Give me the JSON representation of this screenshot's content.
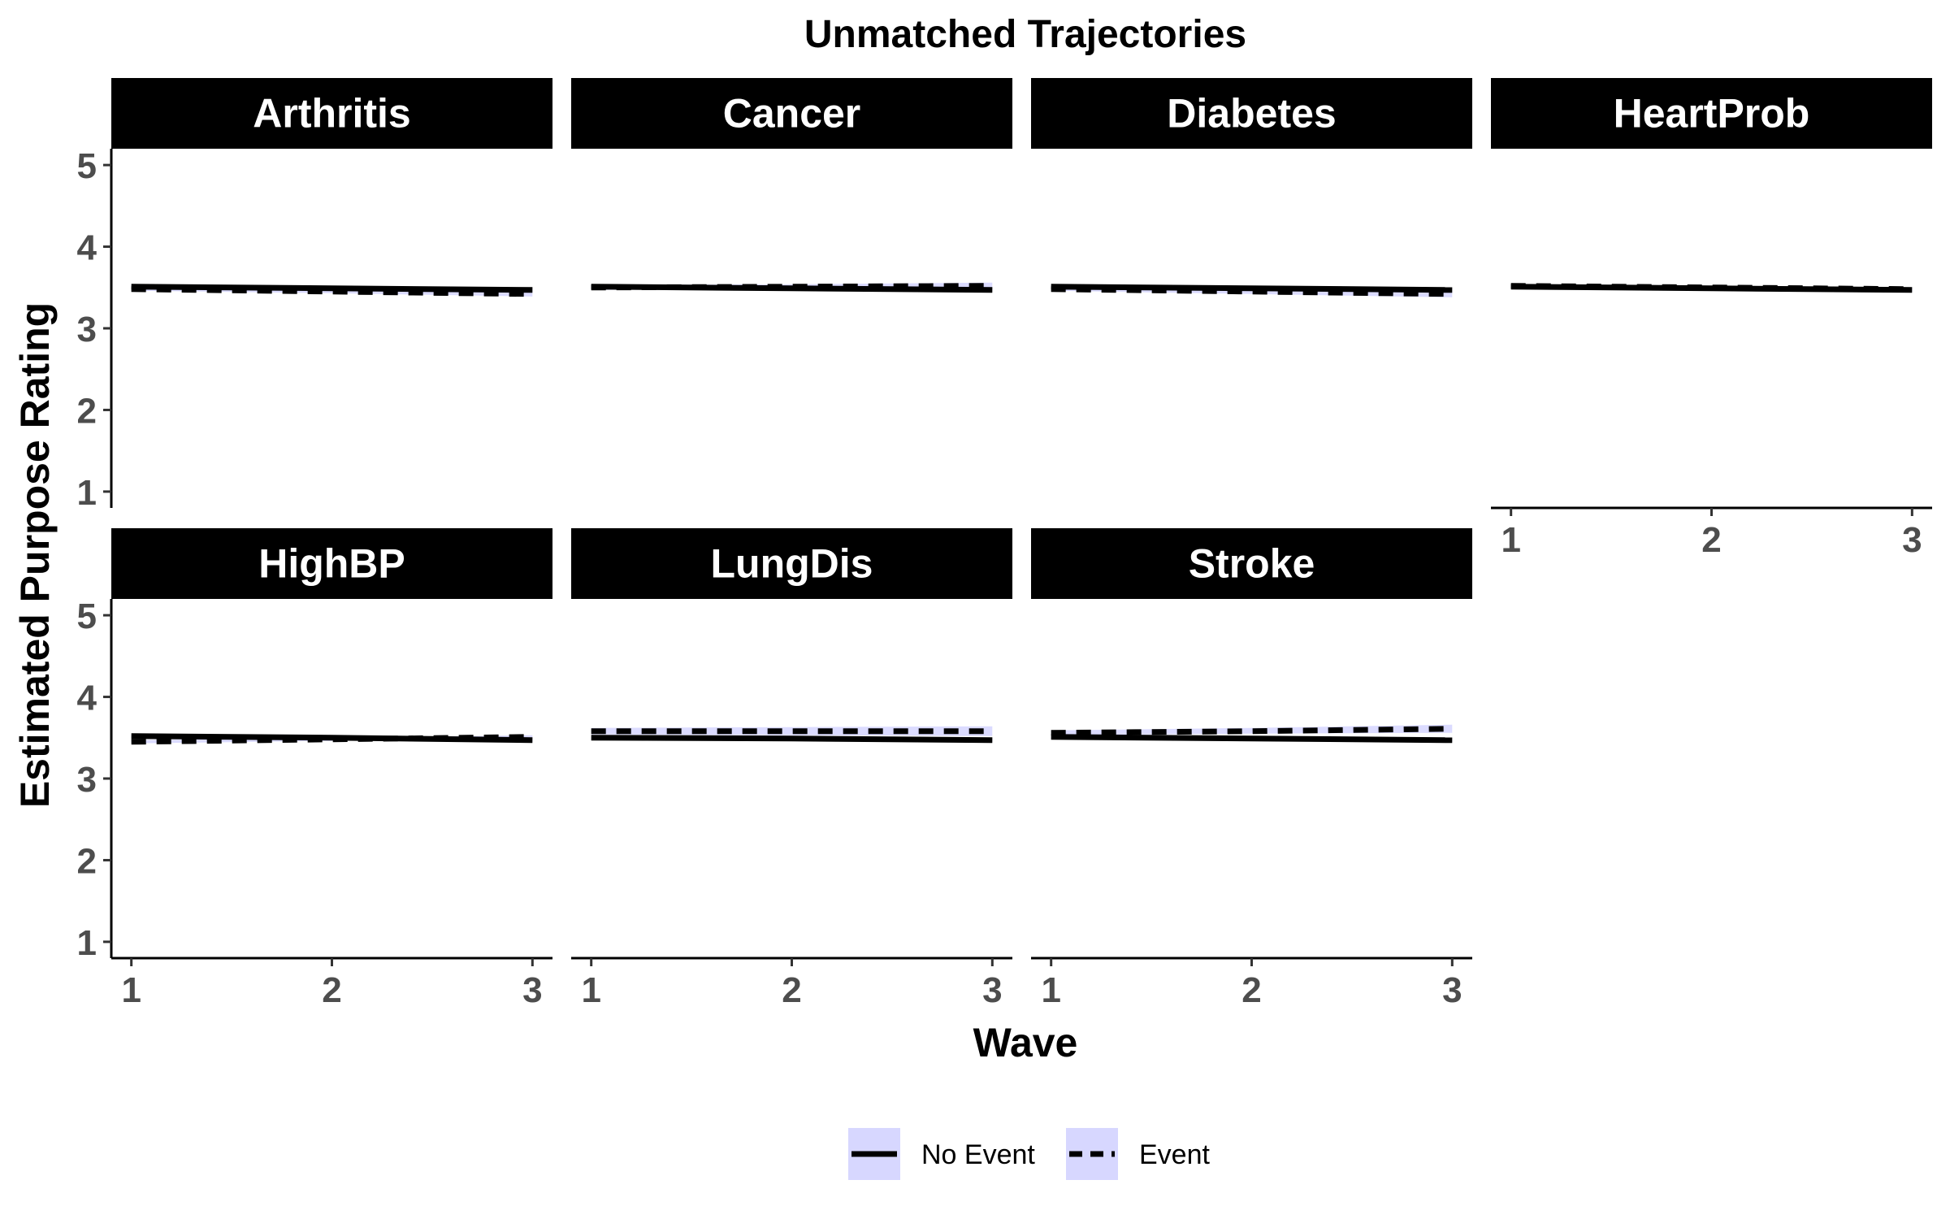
{
  "chart_data": {
    "type": "line",
    "title": "Unmatched Trajectories",
    "xlabel": "Wave",
    "ylabel": "Estimated Purpose Rating",
    "x": [
      1,
      2,
      3
    ],
    "xlim": [
      0.9,
      3.1
    ],
    "ylim": [
      0.8,
      5.2
    ],
    "x_ticks": [
      "1",
      "2",
      "3"
    ],
    "y_ticks": [
      "1",
      "2",
      "3",
      "4",
      "5"
    ],
    "grid": false,
    "legend_position": "bottom",
    "colors": {
      "line": "#000000",
      "ribbon": "#d7d7ff",
      "strip": "#000000"
    },
    "legend": [
      {
        "label": "No Event",
        "linetype": "solid"
      },
      {
        "label": "Event",
        "linetype": "dashed"
      }
    ],
    "facets": [
      {
        "name": "Arthritis",
        "no_event": {
          "values": [
            3.51,
            3.49,
            3.47
          ],
          "lower": [
            3.49,
            3.47,
            3.45
          ],
          "upper": [
            3.53,
            3.51,
            3.49
          ]
        },
        "event": {
          "values": [
            3.48,
            3.45,
            3.42
          ],
          "lower": [
            3.46,
            3.43,
            3.39
          ],
          "upper": [
            3.5,
            3.47,
            3.45
          ]
        }
      },
      {
        "name": "Cancer",
        "no_event": {
          "values": [
            3.51,
            3.49,
            3.47
          ],
          "lower": [
            3.49,
            3.47,
            3.45
          ],
          "upper": [
            3.53,
            3.51,
            3.49
          ]
        },
        "event": {
          "values": [
            3.5,
            3.51,
            3.52
          ],
          "lower": [
            3.47,
            3.48,
            3.48
          ],
          "upper": [
            3.53,
            3.54,
            3.56
          ]
        }
      },
      {
        "name": "Diabetes",
        "no_event": {
          "values": [
            3.51,
            3.49,
            3.47
          ],
          "lower": [
            3.49,
            3.47,
            3.45
          ],
          "upper": [
            3.53,
            3.51,
            3.49
          ]
        },
        "event": {
          "values": [
            3.48,
            3.45,
            3.42
          ],
          "lower": [
            3.46,
            3.42,
            3.38
          ],
          "upper": [
            3.5,
            3.48,
            3.46
          ]
        }
      },
      {
        "name": "HeartProb",
        "no_event": {
          "values": [
            3.51,
            3.49,
            3.47
          ],
          "lower": [
            3.49,
            3.47,
            3.45
          ],
          "upper": [
            3.53,
            3.51,
            3.49
          ]
        },
        "event": {
          "values": [
            3.52,
            3.5,
            3.48
          ],
          "lower": [
            3.5,
            3.48,
            3.46
          ],
          "upper": [
            3.54,
            3.52,
            3.5
          ]
        }
      },
      {
        "name": "HighBP",
        "no_event": {
          "values": [
            3.52,
            3.5,
            3.47
          ],
          "lower": [
            3.5,
            3.48,
            3.45
          ],
          "upper": [
            3.54,
            3.52,
            3.49
          ]
        },
        "event": {
          "values": [
            3.45,
            3.48,
            3.51
          ],
          "lower": [
            3.43,
            3.46,
            3.49
          ],
          "upper": [
            3.47,
            3.5,
            3.53
          ]
        }
      },
      {
        "name": "LungDis",
        "no_event": {
          "values": [
            3.5,
            3.49,
            3.47
          ],
          "lower": [
            3.48,
            3.47,
            3.45
          ],
          "upper": [
            3.52,
            3.51,
            3.49
          ]
        },
        "event": {
          "values": [
            3.58,
            3.58,
            3.58
          ],
          "lower": [
            3.54,
            3.53,
            3.52
          ],
          "upper": [
            3.62,
            3.63,
            3.64
          ]
        }
      },
      {
        "name": "Stroke",
        "no_event": {
          "values": [
            3.51,
            3.49,
            3.47
          ],
          "lower": [
            3.49,
            3.47,
            3.45
          ],
          "upper": [
            3.53,
            3.51,
            3.49
          ]
        },
        "event": {
          "values": [
            3.56,
            3.58,
            3.61
          ],
          "lower": [
            3.53,
            3.55,
            3.56
          ],
          "upper": [
            3.59,
            3.62,
            3.66
          ]
        }
      }
    ]
  }
}
